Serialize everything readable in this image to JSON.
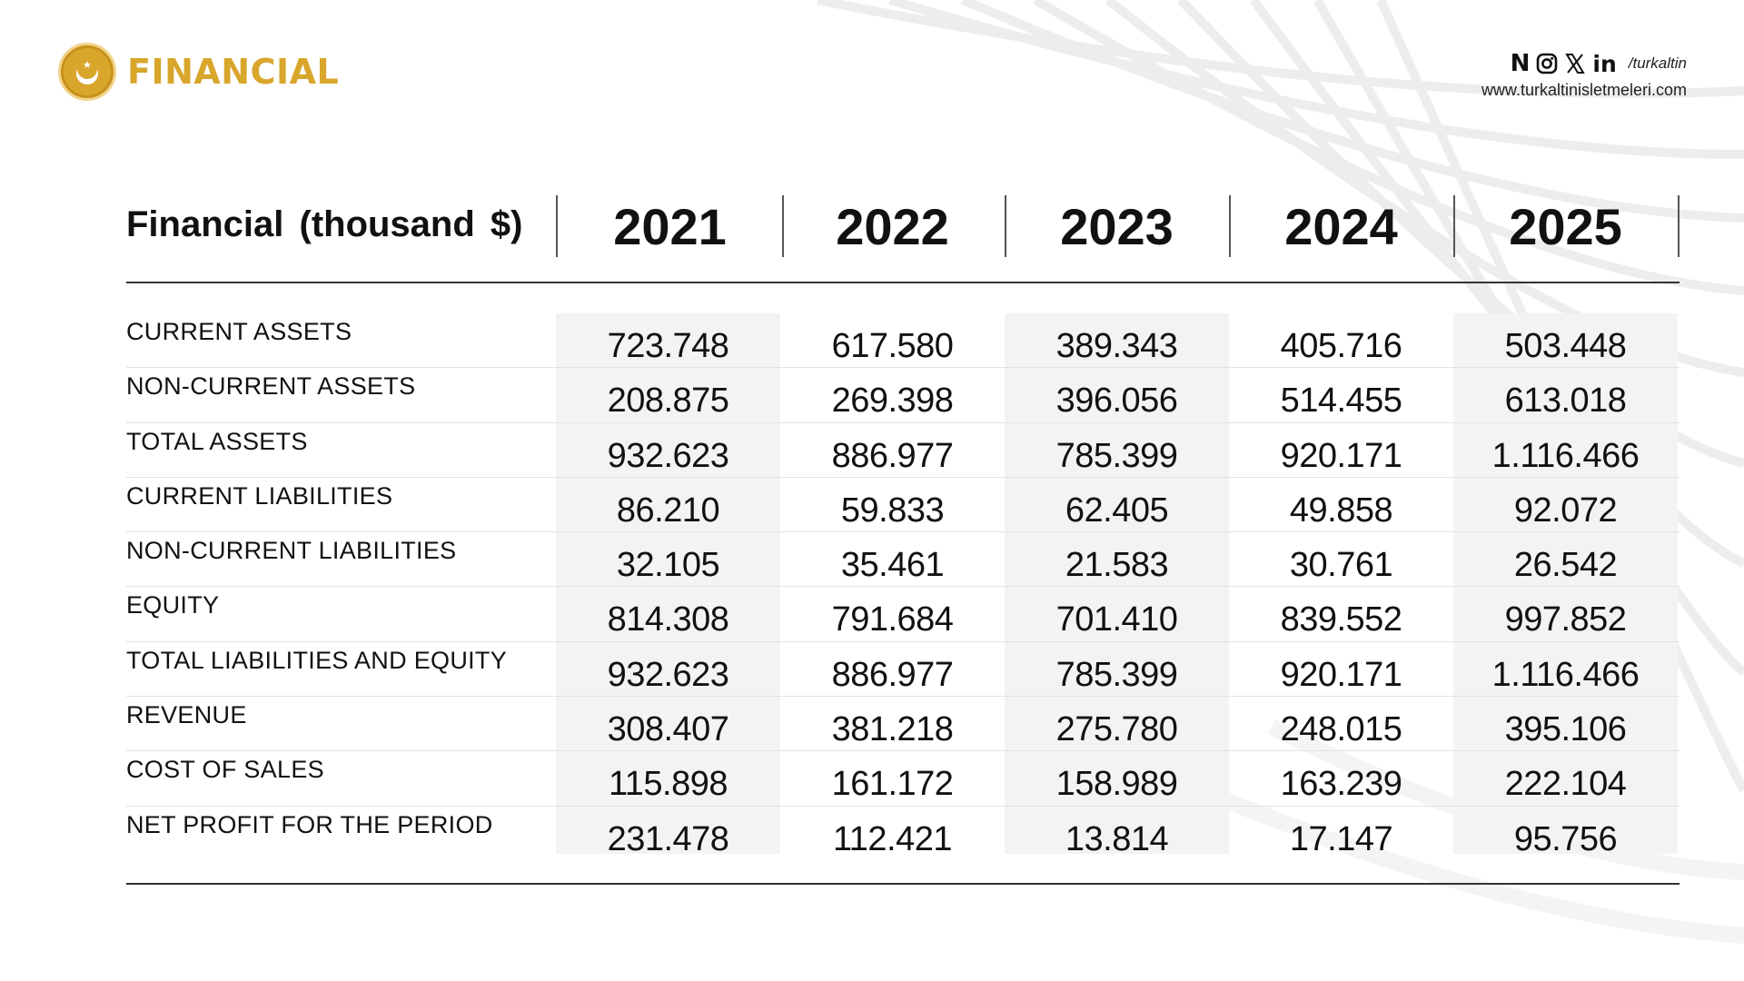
{
  "header": {
    "title": "FINANCIAL",
    "social_handle": "/turkaltin",
    "website": "www.turkaltinisletmeleri.com",
    "brand_color": "#d9a62c",
    "social_icons": [
      "n-icon",
      "instagram-icon",
      "x-icon",
      "linkedin-icon"
    ]
  },
  "table": {
    "heading": "Financial (thousand $)",
    "years": [
      "2021",
      "2022",
      "2023",
      "2024",
      "2025"
    ],
    "rows": [
      {
        "label": "CURRENT ASSETS",
        "values": [
          "723.748",
          "617.580",
          "389.343",
          "405.716",
          "503.448"
        ]
      },
      {
        "label": "NON-CURRENT ASSETS",
        "values": [
          "208.875",
          "269.398",
          "396.056",
          "514.455",
          "613.018"
        ]
      },
      {
        "label": "TOTAL ASSETS",
        "values": [
          "932.623",
          "886.977",
          "785.399",
          "920.171",
          "1.116.466"
        ]
      },
      {
        "label": "CURRENT LIABILITIES",
        "values": [
          "86.210",
          "59.833",
          "62.405",
          "49.858",
          "92.072"
        ]
      },
      {
        "label": "NON-CURRENT LIABILITIES",
        "values": [
          "32.105",
          "35.461",
          "21.583",
          "30.761",
          "26.542"
        ]
      },
      {
        "label": "EQUITY",
        "values": [
          "814.308",
          "791.684",
          "701.410",
          "839.552",
          "997.852"
        ]
      },
      {
        "label": "TOTAL LIABILITIES AND EQUITY",
        "values": [
          "932.623",
          "886.977",
          "785.399",
          "920.171",
          "1.116.466"
        ]
      },
      {
        "label": "REVENUE",
        "values": [
          "308.407",
          "381.218",
          "275.780",
          "248.015",
          "395.106"
        ]
      },
      {
        "label": "COST OF SALES",
        "values": [
          "115.898",
          "161.172",
          "158.989",
          "163.239",
          "222.104"
        ]
      },
      {
        "label": "NET PROFIT FOR THE PERIOD",
        "values": [
          "231.478",
          "112.421",
          "13.814",
          "17.147",
          "95.756"
        ]
      }
    ]
  }
}
